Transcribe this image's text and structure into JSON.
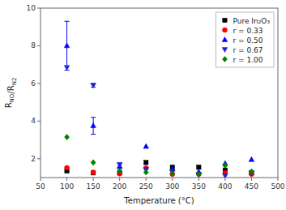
{
  "chart_data": {
    "type": "scatter",
    "xlabel": "Temperature (°C)",
    "ylabel": "RNO/RN2",
    "xlim": [
      50,
      500
    ],
    "ylim": [
      1,
      10
    ],
    "xticks": [
      50,
      100,
      150,
      200,
      250,
      300,
      350,
      400,
      450,
      500
    ],
    "yticks": [
      2,
      4,
      6,
      8,
      10
    ],
    "grid": false,
    "legend": "upper right",
    "x": [
      100,
      150,
      200,
      250,
      300,
      350,
      400,
      450
    ],
    "series": [
      {
        "name": "Pure In₂O₃",
        "color": "black",
        "marker": "square",
        "values": [
          1.35,
          1.25,
          1.25,
          1.8,
          1.55,
          1.55,
          1.4,
          1.25
        ],
        "yerr": [
          null,
          null,
          null,
          null,
          null,
          null,
          null,
          null
        ]
      },
      {
        "name": "r = 0.33",
        "color": "red",
        "marker": "circle",
        "values": [
          1.52,
          1.28,
          1.2,
          1.5,
          1.18,
          1.18,
          1.25,
          1.18
        ],
        "yerr": [
          null,
          null,
          null,
          null,
          null,
          null,
          null,
          null
        ]
      },
      {
        "name": "r = 0.50",
        "color": "blue",
        "marker": "triangle-up",
        "values": [
          8.0,
          3.75,
          1.6,
          2.65,
          1.45,
          1.3,
          1.75,
          1.95
        ],
        "yerr": [
          1.3,
          0.45,
          0.12,
          null,
          null,
          null,
          null,
          null
        ]
      },
      {
        "name": "r = 0.67",
        "color": "#2222cc",
        "marker": "triangle-down",
        "values": [
          6.85,
          5.9,
          1.7,
          1.45,
          1.3,
          1.18,
          1.1,
          1.25
        ],
        "yerr": [
          null,
          0.1,
          null,
          null,
          null,
          null,
          null,
          null
        ]
      },
      {
        "name": "r = 1.00",
        "color": "#008000",
        "marker": "diamond",
        "values": [
          3.15,
          1.8,
          1.35,
          1.28,
          1.22,
          1.18,
          1.65,
          1.32
        ],
        "yerr": [
          null,
          null,
          null,
          null,
          null,
          null,
          null,
          null
        ]
      }
    ]
  }
}
